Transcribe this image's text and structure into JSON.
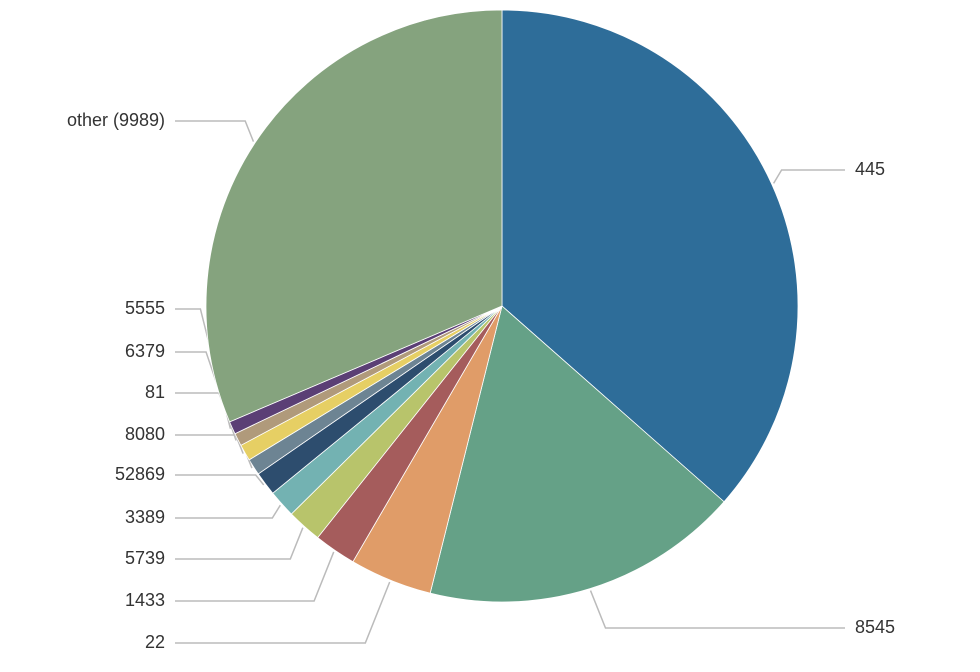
{
  "chart_data": {
    "type": "pie",
    "categories": [
      "445",
      "8545",
      "22",
      "1433",
      "5739",
      "3389",
      "52869",
      "8080",
      "81",
      "6379",
      "5555",
      "other (9989)"
    ],
    "values": [
      36.5,
      17.4,
      4.5,
      2.3,
      1.9,
      1.5,
      1.3,
      0.9,
      0.9,
      0.7,
      0.7,
      31.4
    ],
    "colors": [
      "#2e6d99",
      "#65a187",
      "#e09c68",
      "#a55c5c",
      "#b8c46b",
      "#73b2b2",
      "#2d4d6e",
      "#6d8493",
      "#e6cf64",
      "#b09a7b",
      "#5b3f75",
      "#85a37e"
    ]
  }
}
